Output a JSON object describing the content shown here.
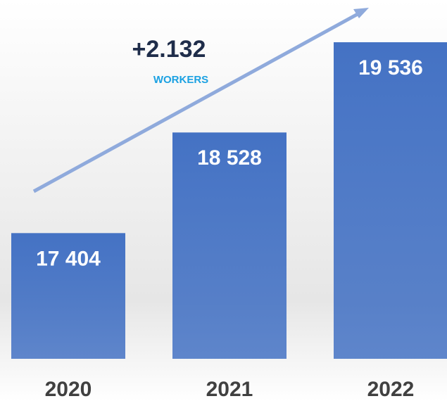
{
  "chart_data": {
    "type": "bar",
    "categories": [
      "2020",
      "2021",
      "2022"
    ],
    "values": [
      17404,
      18528,
      19536
    ],
    "value_labels": [
      "17 404",
      "18 528",
      "19 536"
    ],
    "color": "#4472c4",
    "ylim": [
      16000,
      20000
    ],
    "annotations": [
      "+2.132",
      "WORKERS"
    ]
  }
}
